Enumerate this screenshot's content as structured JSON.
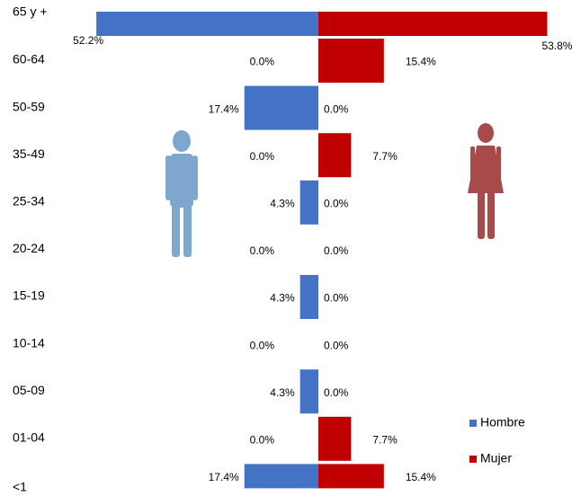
{
  "chart_data": {
    "type": "pyramid",
    "categories": [
      "65 y +",
      "60-64",
      "50-59",
      "35-49",
      "25-34",
      "20-24",
      "15-19",
      "10-14",
      "05-09",
      "01-04",
      "<1"
    ],
    "series": [
      {
        "name": "Hombre",
        "color": "#4472c4",
        "side": "left",
        "values": [
          52.2,
          0,
          17.4,
          0,
          4.3,
          0,
          4.3,
          0,
          4.3,
          0,
          17.4
        ],
        "value_labels": [
          "52.2%",
          "0.0%",
          "17.4%",
          "0.0%",
          "4.3%",
          "0.0%",
          "4.3%",
          "0.0%",
          "4.3%",
          "0.0%",
          "17.4%"
        ]
      },
      {
        "name": "Mujer",
        "color": "#c00000",
        "side": "right",
        "values": [
          53.8,
          15.4,
          0,
          7.7,
          0,
          0,
          0,
          0,
          0,
          7.7,
          15.4
        ],
        "value_labels": [
          "53.8%",
          "15.4%",
          "0.0%",
          "7.7%",
          "0.0%",
          "0.0%",
          "0.0%",
          "0.0%",
          "0.0%",
          "7.7%",
          "15.4%"
        ]
      }
    ]
  }
}
